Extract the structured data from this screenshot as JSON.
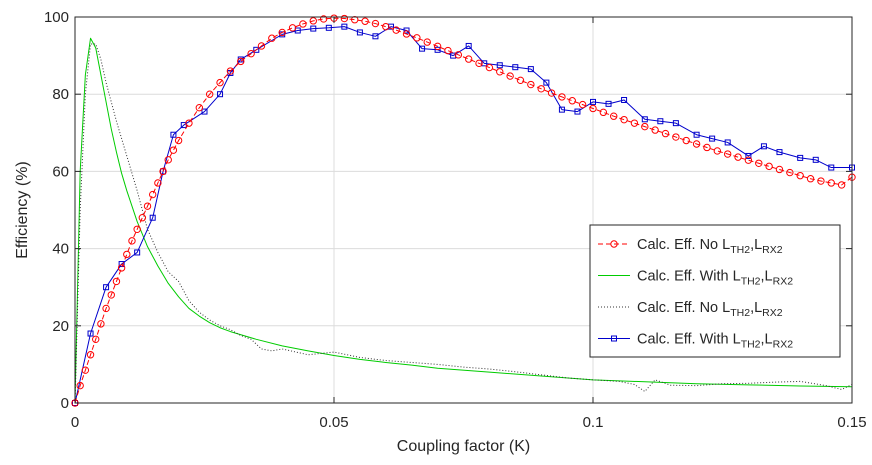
{
  "chart_data": {
    "type": "line",
    "xlabel": "Coupling factor (K)",
    "ylabel": "Efficiency (%)",
    "xlim": [
      0,
      0.15
    ],
    "ylim": [
      0,
      100
    ],
    "x_ticks": [
      0,
      0.05,
      0.1,
      0.15
    ],
    "x_tick_labels": [
      "0",
      "0.05",
      "0.1",
      "0.15"
    ],
    "y_ticks": [
      0,
      20,
      40,
      60,
      80,
      100
    ],
    "y_tick_labels": [
      "0",
      "20",
      "40",
      "60",
      "80",
      "100"
    ],
    "grid": true,
    "legend_position": "right",
    "series": [
      {
        "name": "Calc. Eff. No L_TH2,L_RX2",
        "label_main": "Calc. Eff. No L",
        "label_sub1": "TH2",
        "label_mid": ",L",
        "label_sub2": "RX2",
        "color": "#ff0000",
        "style": "dashed-circle",
        "x": [
          0,
          0.001,
          0.002,
          0.003,
          0.004,
          0.005,
          0.006,
          0.007,
          0.008,
          0.009,
          0.01,
          0.011,
          0.012,
          0.013,
          0.014,
          0.015,
          0.016,
          0.017,
          0.018,
          0.019,
          0.02,
          0.022,
          0.024,
          0.026,
          0.028,
          0.03,
          0.032,
          0.034,
          0.036,
          0.038,
          0.04,
          0.042,
          0.044,
          0.046,
          0.048,
          0.05,
          0.052,
          0.054,
          0.056,
          0.058,
          0.06,
          0.062,
          0.064,
          0.066,
          0.068,
          0.07,
          0.072,
          0.074,
          0.076,
          0.078,
          0.08,
          0.082,
          0.084,
          0.086,
          0.088,
          0.09,
          0.092,
          0.094,
          0.096,
          0.098,
          0.1,
          0.102,
          0.104,
          0.106,
          0.108,
          0.11,
          0.112,
          0.114,
          0.116,
          0.118,
          0.12,
          0.122,
          0.124,
          0.126,
          0.128,
          0.13,
          0.132,
          0.134,
          0.136,
          0.138,
          0.14,
          0.142,
          0.144,
          0.146,
          0.148,
          0.15
        ],
        "values": [
          0,
          4.5,
          8.5,
          12.5,
          16.5,
          20.5,
          24.5,
          28,
          31.5,
          35,
          38.5,
          42,
          45,
          48,
          51,
          54,
          57,
          60,
          63,
          65.5,
          68,
          72.5,
          76.5,
          80,
          83,
          86,
          88.5,
          90.5,
          92.5,
          94.5,
          96,
          97.2,
          98.2,
          99,
          99.5,
          99.7,
          99.6,
          99.3,
          98.9,
          98.3,
          97.5,
          96.6,
          95.6,
          94.6,
          93.5,
          92.4,
          91.3,
          90.2,
          89.1,
          88,
          86.9,
          85.8,
          84.7,
          83.6,
          82.5,
          81.4,
          80.3,
          79.3,
          78.3,
          77.3,
          76.3,
          75.3,
          74.3,
          73.4,
          72.5,
          71.6,
          70.7,
          69.8,
          68.9,
          68,
          67.1,
          66.2,
          65.3,
          64.5,
          63.7,
          62.9,
          62.1,
          61.3,
          60.5,
          59.7,
          58.9,
          58.1,
          57.5,
          57,
          56.5,
          58.5
        ]
      },
      {
        "name": "Calc. Eff. With L_TH2,L_RX2",
        "label_main": "Calc. Eff. With L",
        "label_sub1": "TH2",
        "label_mid": ",L",
        "label_sub2": "RX2",
        "color": "#00cc00",
        "style": "solid",
        "x": [
          0,
          0.001,
          0.002,
          0.003,
          0.004,
          0.005,
          0.006,
          0.007,
          0.008,
          0.009,
          0.01,
          0.012,
          0.014,
          0.016,
          0.018,
          0.02,
          0.022,
          0.024,
          0.026,
          0.028,
          0.03,
          0.035,
          0.04,
          0.045,
          0.05,
          0.055,
          0.06,
          0.065,
          0.07,
          0.08,
          0.09,
          0.1,
          0.11,
          0.12,
          0.13,
          0.14,
          0.15
        ],
        "values": [
          0,
          60,
          85,
          94.5,
          92,
          85,
          78,
          71,
          65,
          59.5,
          55,
          47,
          40.5,
          35.5,
          31,
          27.5,
          24.5,
          22.5,
          20.8,
          19.5,
          18.5,
          16.5,
          14.8,
          13.5,
          12.3,
          11.3,
          10.5,
          9.8,
          9,
          8,
          7,
          6,
          5.5,
          5,
          4.7,
          4.4,
          4.2
        ]
      },
      {
        "name": "Calc. Eff. No L_TH2,L_RX2",
        "label_main": "Calc. Eff. No L",
        "label_sub1": "TH2",
        "label_mid": ",L",
        "label_sub2": "RX2",
        "color": "#333333",
        "style": "dotted",
        "x": [
          0,
          0.001,
          0.002,
          0.003,
          0.004,
          0.005,
          0.006,
          0.007,
          0.008,
          0.009,
          0.01,
          0.012,
          0.014,
          0.016,
          0.018,
          0.02,
          0.022,
          0.024,
          0.026,
          0.028,
          0.03,
          0.032,
          0.034,
          0.036,
          0.038,
          0.04,
          0.045,
          0.05,
          0.055,
          0.06,
          0.065,
          0.07,
          0.075,
          0.08,
          0.085,
          0.09,
          0.095,
          0.1,
          0.105,
          0.108,
          0.11,
          0.112,
          0.115,
          0.12,
          0.125,
          0.13,
          0.135,
          0.14,
          0.145,
          0.148,
          0.15
        ],
        "values": [
          0,
          50,
          80,
          93,
          93,
          89,
          83,
          78,
          73,
          68.5,
          64,
          55,
          45,
          39,
          34,
          31.5,
          26.5,
          23.5,
          21.5,
          20,
          19,
          17.5,
          16.5,
          14,
          13.5,
          14,
          12.5,
          13.2,
          11.8,
          11,
          10.5,
          10,
          9.3,
          8.8,
          8.1,
          7.3,
          6.5,
          6,
          5.6,
          4.8,
          3,
          6,
          4.6,
          4.5,
          5,
          5.1,
          5.4,
          5.6,
          4.5,
          3.5,
          4.8
        ]
      },
      {
        "name": "Calc. Eff. With L_TH2,L_RX2",
        "label_main": "Calc. Eff. With L",
        "label_sub1": "TH2",
        "label_mid": ",L",
        "label_sub2": "RX2",
        "color": "#0000cc",
        "style": "solid-square",
        "x": [
          0,
          0.003,
          0.006,
          0.009,
          0.012,
          0.015,
          0.017,
          0.019,
          0.021,
          0.025,
          0.028,
          0.03,
          0.032,
          0.035,
          0.04,
          0.043,
          0.046,
          0.049,
          0.052,
          0.055,
          0.058,
          0.061,
          0.064,
          0.067,
          0.07,
          0.073,
          0.076,
          0.079,
          0.082,
          0.085,
          0.088,
          0.091,
          0.094,
          0.097,
          0.1,
          0.103,
          0.106,
          0.11,
          0.113,
          0.116,
          0.12,
          0.123,
          0.126,
          0.13,
          0.133,
          0.136,
          0.14,
          0.143,
          0.146,
          0.15
        ],
        "values": [
          0,
          18,
          30,
          36,
          39,
          48,
          60,
          69.5,
          72,
          75.5,
          80,
          85.5,
          89,
          91.5,
          95.5,
          96.5,
          97,
          97.2,
          97.5,
          96,
          95,
          97.5,
          96.5,
          91.8,
          91.5,
          90,
          92.5,
          88,
          87.5,
          87,
          86.5,
          83,
          76,
          75.5,
          78,
          77.5,
          78.5,
          73.5,
          73,
          72.5,
          69.5,
          68.5,
          67.5,
          64,
          66.5,
          65,
          63.5,
          63,
          61,
          61
        ]
      }
    ]
  }
}
